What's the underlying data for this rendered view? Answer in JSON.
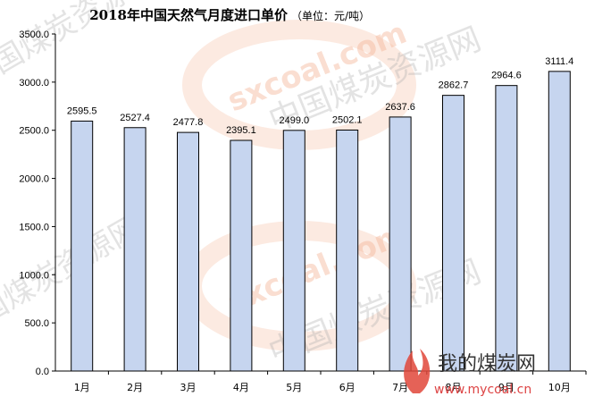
{
  "chart_data": {
    "type": "bar",
    "title": "2018年中国天然气月度进口单价",
    "unit": "（单位：元/吨）",
    "categories": [
      "1月",
      "2月",
      "3月",
      "4月",
      "5月",
      "6月",
      "7月",
      "8月",
      "9月",
      "10月"
    ],
    "values": [
      2595.5,
      2527.4,
      2477.8,
      2395.1,
      2499.0,
      2502.1,
      2637.6,
      2862.7,
      2964.6,
      3111.4
    ],
    "value_labels": [
      "2595.5",
      "2527.4",
      "2477.8",
      "2395.1",
      "2499.0",
      "2502.1",
      "2637.6",
      "2862.7",
      "2964.6",
      "3111.4"
    ],
    "yticks": [
      0,
      500,
      1000,
      1500,
      2000,
      2500,
      3000,
      3500
    ],
    "ytick_labels": [
      "0.0",
      "500.0",
      "1000.0",
      "1500.0",
      "2000.0",
      "2500.0",
      "3000.0",
      "3500.0"
    ],
    "ylim": [
      0,
      3500
    ],
    "grid": false,
    "legend": "none",
    "bar_color": "#c6d5ef"
  },
  "watermark": {
    "brand_text": "sxcoal.com",
    "brand_cn": "中国煤炭资源网",
    "logo_cn": "我的煤炭网",
    "logo_url": "www.mycoal.cn"
  }
}
